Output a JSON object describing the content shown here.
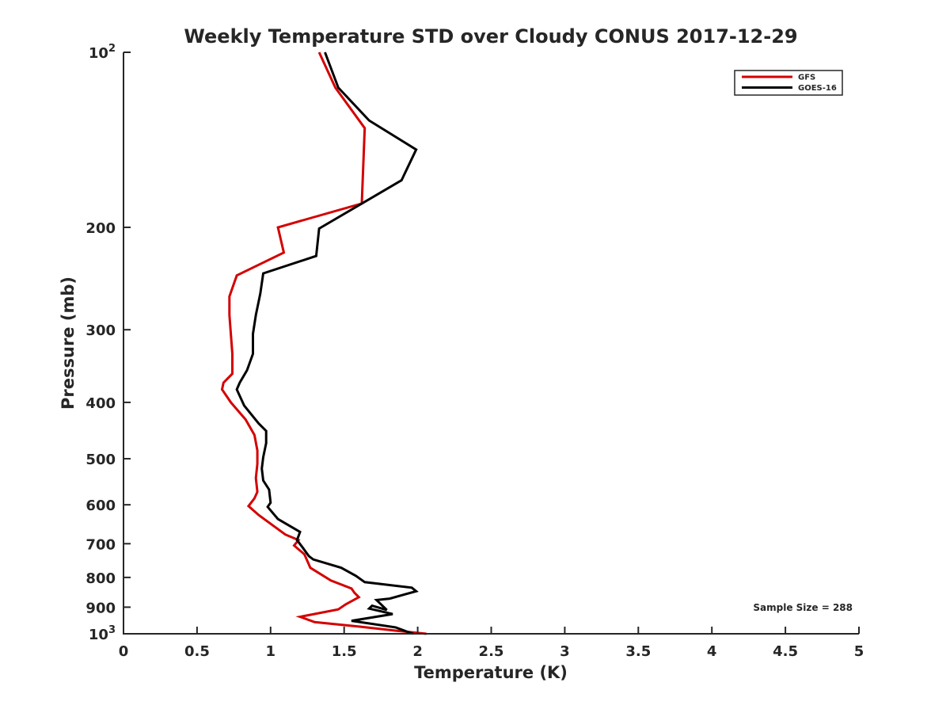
{
  "chart_data": {
    "type": "line",
    "title": "Weekly Temperature STD over Cloudy CONUS 2017-12-29",
    "xlabel": "Temperature (K)",
    "ylabel": "Pressure (mb)",
    "xlim": [
      0,
      5
    ],
    "ylim": [
      1000,
      100
    ],
    "yscale": "log",
    "y_reversed": true,
    "grid": false,
    "legend_position": "top-right",
    "x_ticks": [
      {
        "value": 0,
        "label": "0"
      },
      {
        "value": 0.5,
        "label": "0.5"
      },
      {
        "value": 1,
        "label": "1"
      },
      {
        "value": 1.5,
        "label": "1.5"
      },
      {
        "value": 2,
        "label": "2"
      },
      {
        "value": 2.5,
        "label": "2.5"
      },
      {
        "value": 3,
        "label": "3"
      },
      {
        "value": 3.5,
        "label": "3.5"
      },
      {
        "value": 4,
        "label": "4"
      },
      {
        "value": 4.5,
        "label": "4.5"
      },
      {
        "value": 5,
        "label": "5"
      }
    ],
    "y_ticks": [
      {
        "value": 100,
        "label": "10",
        "sup": "2"
      },
      {
        "value": 200,
        "label": "200"
      },
      {
        "value": 300,
        "label": "300"
      },
      {
        "value": 400,
        "label": "400"
      },
      {
        "value": 500,
        "label": "500"
      },
      {
        "value": 600,
        "label": "600"
      },
      {
        "value": 700,
        "label": "700"
      },
      {
        "value": 800,
        "label": "800"
      },
      {
        "value": 900,
        "label": "900"
      },
      {
        "value": 1000,
        "label": "10",
        "sup": "3"
      }
    ],
    "annotation": "Sample Size = 288",
    "series": [
      {
        "name": "GFS",
        "color": "#d40000",
        "points": [
          [
            1.33,
            100
          ],
          [
            1.44,
            115
          ],
          [
            1.64,
            135
          ],
          [
            1.62,
            182
          ],
          [
            1.05,
            200
          ],
          [
            1.09,
            221
          ],
          [
            0.77,
            242
          ],
          [
            0.72,
            263
          ],
          [
            0.72,
            283
          ],
          [
            0.73,
            305
          ],
          [
            0.74,
            330
          ],
          [
            0.74,
            357
          ],
          [
            0.68,
            370
          ],
          [
            0.67,
            380
          ],
          [
            0.73,
            400
          ],
          [
            0.83,
            428
          ],
          [
            0.89,
            455
          ],
          [
            0.91,
            484
          ],
          [
            0.91,
            510
          ],
          [
            0.9,
            540
          ],
          [
            0.91,
            570
          ],
          [
            0.89,
            585
          ],
          [
            0.85,
            603
          ],
          [
            0.92,
            625
          ],
          [
            1.1,
            675
          ],
          [
            1.19,
            690
          ],
          [
            1.16,
            705
          ],
          [
            1.23,
            730
          ],
          [
            1.27,
            770
          ],
          [
            1.41,
            810
          ],
          [
            1.55,
            836
          ],
          [
            1.57,
            850
          ],
          [
            1.6,
            865
          ],
          [
            1.51,
            890
          ],
          [
            1.46,
            908
          ],
          [
            1.2,
            935
          ],
          [
            1.3,
            955
          ],
          [
            1.6,
            972
          ],
          [
            1.86,
            988
          ],
          [
            2.06,
            1000
          ]
        ]
      },
      {
        "name": "GOES-16",
        "color": "#000000",
        "points": [
          [
            1.37,
            100
          ],
          [
            1.46,
            115
          ],
          [
            1.67,
            131
          ],
          [
            1.99,
            147
          ],
          [
            1.89,
            166
          ],
          [
            1.33,
            201
          ],
          [
            1.31,
            224
          ],
          [
            0.95,
            240
          ],
          [
            0.93,
            260
          ],
          [
            0.9,
            283
          ],
          [
            0.88,
            305
          ],
          [
            0.88,
            330
          ],
          [
            0.84,
            352
          ],
          [
            0.79,
            370
          ],
          [
            0.77,
            380
          ],
          [
            0.82,
            405
          ],
          [
            0.92,
            435
          ],
          [
            0.97,
            448
          ],
          [
            0.97,
            470
          ],
          [
            0.95,
            497
          ],
          [
            0.94,
            520
          ],
          [
            0.95,
            545
          ],
          [
            0.99,
            565
          ],
          [
            1.0,
            595
          ],
          [
            0.98,
            605
          ],
          [
            1.05,
            635
          ],
          [
            1.2,
            668
          ],
          [
            1.18,
            690
          ],
          [
            1.22,
            712
          ],
          [
            1.26,
            735
          ],
          [
            1.29,
            745
          ],
          [
            1.48,
            770
          ],
          [
            1.58,
            795
          ],
          [
            1.64,
            815
          ],
          [
            1.96,
            833
          ],
          [
            1.99,
            845
          ],
          [
            1.81,
            870
          ],
          [
            1.72,
            875
          ],
          [
            1.79,
            910
          ],
          [
            1.69,
            895
          ],
          [
            1.67,
            905
          ],
          [
            1.83,
            925
          ],
          [
            1.55,
            950
          ],
          [
            1.85,
            975
          ],
          [
            1.92,
            990
          ],
          [
            1.97,
            1000
          ]
        ]
      }
    ]
  }
}
